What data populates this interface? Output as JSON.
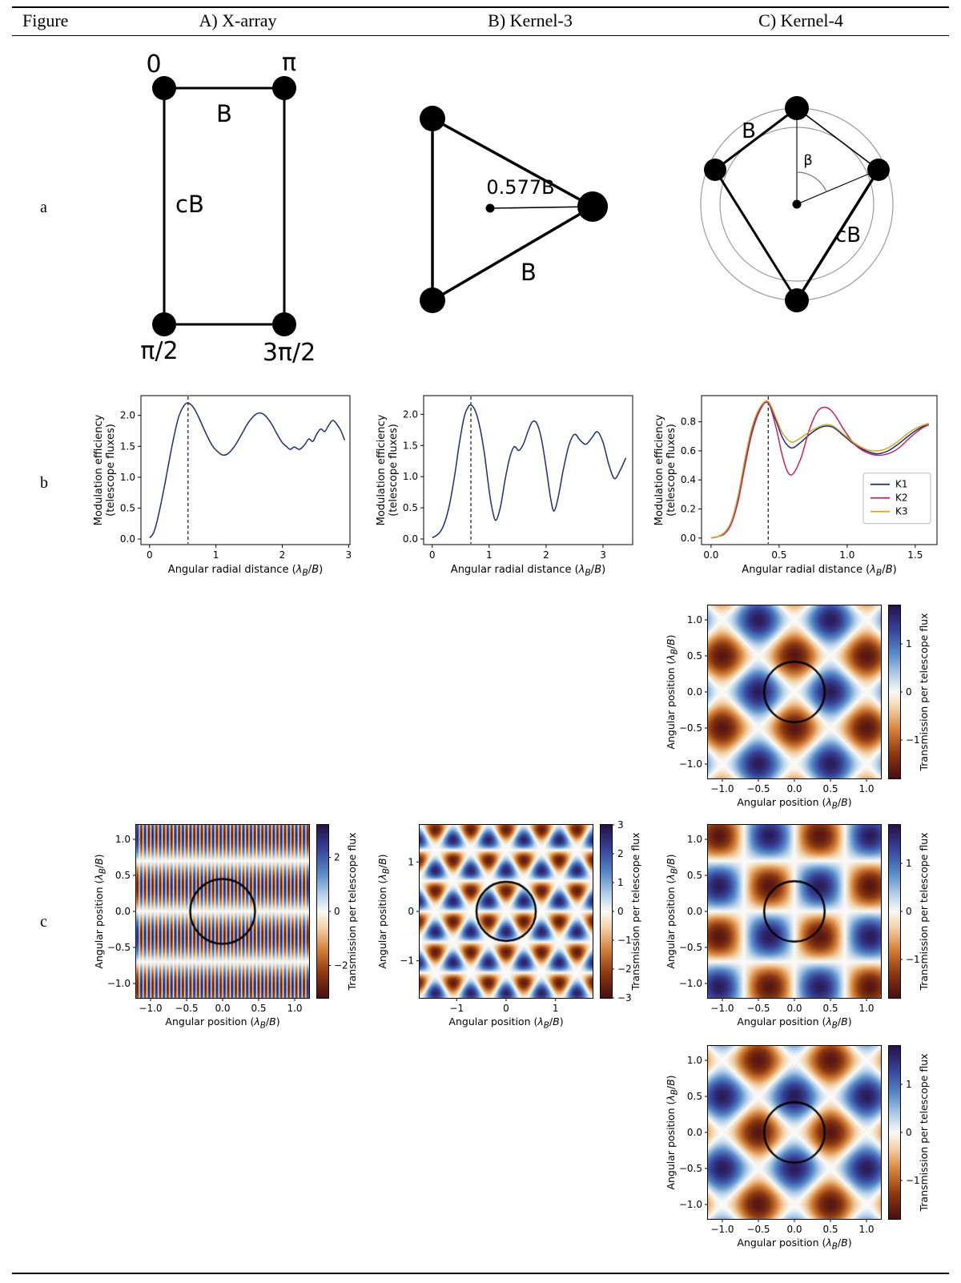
{
  "header": {
    "figure": "Figure",
    "col_a": "A) X-array",
    "col_b": "B) Kernel-3",
    "col_c": "C) Kernel-4"
  },
  "rows": {
    "a": "a",
    "b": "b",
    "c": "c"
  },
  "diagrams": {
    "xarray": {
      "phase_tl": "0",
      "phase_tr": "π",
      "phase_bl": "π/2",
      "phase_br": "3π/2",
      "baseline_top": "B",
      "baseline_left": "cB"
    },
    "kernel3": {
      "radius_label": "0.577B",
      "baseline": "B"
    },
    "kernel4": {
      "baseline_b": "B",
      "baseline_cb": "cB",
      "angle": "β"
    }
  },
  "labels": {
    "angpos_parts": [
      {
        "t": "Angular position (",
        "s": ""
      },
      {
        "t": "λ",
        "s": "i"
      },
      {
        "t": "B",
        "s": "sub"
      },
      {
        "t": "/",
        "s": ""
      },
      {
        "t": "B",
        "s": "i"
      },
      {
        "t": ")",
        "s": ""
      }
    ],
    "angrad_parts": [
      {
        "t": "Angular radial distance (",
        "s": ""
      },
      {
        "t": "λ",
        "s": "i"
      },
      {
        "t": "B",
        "s": "sub"
      },
      {
        "t": "/",
        "s": ""
      },
      {
        "t": "B",
        "s": "i"
      },
      {
        "t": ")",
        "s": ""
      }
    ],
    "modeff_lines": [
      "Modulation efficiency",
      "(telescope fluxes)"
    ],
    "cbar_label": "Transmission per telescope flux"
  },
  "chart_data": {
    "line_plots": [
      {
        "kind": "line",
        "title": "Modulation efficiency, X-array",
        "xlim": [
          -0.13,
          3.02
        ],
        "ylim": [
          -0.09,
          2.32
        ],
        "xticks": [
          {
            "v": 0,
            "l": "0"
          },
          {
            "v": 1,
            "l": "1"
          },
          {
            "v": 2,
            "l": "2"
          },
          {
            "v": 3,
            "l": "3"
          }
        ],
        "yticks": [
          {
            "v": 0,
            "l": "0.0"
          },
          {
            "v": 0.5,
            "l": "0.5"
          },
          {
            "v": 1,
            "l": "1.0"
          },
          {
            "v": 1.5,
            "l": "1.5"
          },
          {
            "v": 2,
            "l": "2.0"
          }
        ],
        "vline": 0.58,
        "xlabel": "angrad_parts",
        "ylabel_lines_key": "modeff_lines",
        "series": [
          {
            "name": "X-array",
            "color": "#1c2f6b",
            "x": [
              0,
              0.06,
              0.12,
              0.2,
              0.28,
              0.36,
              0.44,
              0.52,
              0.58,
              0.66,
              0.74,
              0.84,
              0.94,
              1.02,
              1.1,
              1.18,
              1.28,
              1.38,
              1.48,
              1.58,
              1.66,
              1.74,
              1.84,
              1.92,
              2.0,
              2.06,
              2.12,
              2.18,
              2.26,
              2.34,
              2.4,
              2.46,
              2.52,
              2.58,
              2.64,
              2.7,
              2.76,
              2.82,
              2.88,
              2.94
            ],
            "y": [
              0.02,
              0.1,
              0.32,
              0.72,
              1.18,
              1.62,
              1.98,
              2.16,
              2.2,
              2.13,
              1.97,
              1.73,
              1.52,
              1.42,
              1.36,
              1.38,
              1.5,
              1.68,
              1.87,
              2.0,
              2.04,
              2.0,
              1.86,
              1.7,
              1.56,
              1.5,
              1.45,
              1.49,
              1.45,
              1.53,
              1.62,
              1.58,
              1.7,
              1.78,
              1.74,
              1.84,
              1.92,
              1.86,
              1.76,
              1.6
            ]
          }
        ],
        "legend": false
      },
      {
        "kind": "line",
        "title": "Modulation efficiency, Kernel-3",
        "xlim": [
          -0.15,
          3.52
        ],
        "ylim": [
          -0.09,
          2.3
        ],
        "xticks": [
          {
            "v": 0,
            "l": "0"
          },
          {
            "v": 1,
            "l": "1"
          },
          {
            "v": 2,
            "l": "2"
          },
          {
            "v": 3,
            "l": "3"
          }
        ],
        "yticks": [
          {
            "v": 0,
            "l": "0.0"
          },
          {
            "v": 0.5,
            "l": "0.5"
          },
          {
            "v": 1,
            "l": "1.0"
          },
          {
            "v": 1.5,
            "l": "1.5"
          },
          {
            "v": 2,
            "l": "2.0"
          }
        ],
        "vline": 0.68,
        "xlabel": "angrad_parts",
        "ylabel_lines_key": "modeff_lines",
        "series": [
          {
            "name": "Kernel-3",
            "color": "#1c2f6b",
            "x": [
              0,
              0.08,
              0.16,
              0.24,
              0.32,
              0.4,
              0.48,
              0.56,
              0.62,
              0.68,
              0.76,
              0.84,
              0.92,
              1.0,
              1.06,
              1.12,
              1.2,
              1.28,
              1.36,
              1.44,
              1.52,
              1.6,
              1.68,
              1.76,
              1.84,
              1.92,
              2.0,
              2.08,
              2.14,
              2.22,
              2.3,
              2.4,
              2.5,
              2.6,
              2.7,
              2.8,
              2.9,
              3.0,
              3.1,
              3.2,
              3.3,
              3.4
            ],
            "y": [
              0.02,
              0.06,
              0.14,
              0.32,
              0.62,
              1.05,
              1.55,
              1.95,
              2.1,
              2.15,
              2.05,
              1.78,
              1.35,
              0.78,
              0.45,
              0.3,
              0.52,
              0.95,
              1.3,
              1.48,
              1.42,
              1.52,
              1.72,
              1.88,
              1.85,
              1.6,
              1.15,
              0.65,
              0.45,
              0.7,
              1.1,
              1.5,
              1.68,
              1.58,
              1.52,
              1.62,
              1.72,
              1.55,
              1.2,
              0.97,
              1.1,
              1.3
            ]
          }
        ],
        "legend": false
      },
      {
        "kind": "line",
        "title": "Modulation efficiency, Kernel-4",
        "xlim": [
          -0.07,
          1.66
        ],
        "ylim": [
          -0.045,
          0.98
        ],
        "xticks": [
          {
            "v": 0,
            "l": "0.0"
          },
          {
            "v": 0.5,
            "l": "0.5"
          },
          {
            "v": 1,
            "l": "1.0"
          },
          {
            "v": 1.5,
            "l": "1.5"
          }
        ],
        "yticks": [
          {
            "v": 0,
            "l": "0.0"
          },
          {
            "v": 0.2,
            "l": "0.2"
          },
          {
            "v": 0.4,
            "l": "0.4"
          },
          {
            "v": 0.6,
            "l": "0.6"
          },
          {
            "v": 0.8,
            "l": "0.8"
          }
        ],
        "vline": 0.42,
        "xlabel": "angrad_parts",
        "ylabel_lines_key": "modeff_lines",
        "series": [
          {
            "name": "K1",
            "color": "#1c2f6b",
            "x": [
              0,
              0.05,
              0.1,
              0.15,
              0.2,
              0.25,
              0.3,
              0.36,
              0.42,
              0.48,
              0.52,
              0.56,
              0.6,
              0.66,
              0.72,
              0.78,
              0.84,
              0.9,
              0.98,
              1.06,
              1.14,
              1.22,
              1.3,
              1.38,
              1.46,
              1.54,
              1.6
            ],
            "y": [
              0,
              0.01,
              0.04,
              0.11,
              0.28,
              0.53,
              0.74,
              0.89,
              0.93,
              0.8,
              0.7,
              0.64,
              0.62,
              0.66,
              0.71,
              0.75,
              0.77,
              0.76,
              0.7,
              0.64,
              0.6,
              0.58,
              0.6,
              0.65,
              0.71,
              0.76,
              0.78
            ]
          },
          {
            "name": "K2",
            "color": "#bb2664",
            "x": [
              0,
              0.05,
              0.1,
              0.15,
              0.2,
              0.25,
              0.3,
              0.36,
              0.42,
              0.48,
              0.52,
              0.56,
              0.6,
              0.66,
              0.72,
              0.78,
              0.84,
              0.9,
              0.98,
              1.06,
              1.14,
              1.22,
              1.3,
              1.38,
              1.46,
              1.54,
              1.6
            ],
            "y": [
              0,
              0.01,
              0.03,
              0.1,
              0.26,
              0.5,
              0.72,
              0.88,
              0.93,
              0.75,
              0.58,
              0.46,
              0.44,
              0.55,
              0.74,
              0.87,
              0.9,
              0.86,
              0.74,
              0.64,
              0.59,
              0.57,
              0.58,
              0.62,
              0.69,
              0.75,
              0.78
            ]
          },
          {
            "name": "K3",
            "color": "#d2a62c",
            "x": [
              0,
              0.05,
              0.1,
              0.15,
              0.2,
              0.25,
              0.3,
              0.36,
              0.42,
              0.48,
              0.52,
              0.56,
              0.6,
              0.66,
              0.72,
              0.78,
              0.84,
              0.9,
              0.98,
              1.06,
              1.14,
              1.22,
              1.3,
              1.38,
              1.46,
              1.54,
              1.6
            ],
            "y": [
              0,
              0.01,
              0.04,
              0.12,
              0.3,
              0.55,
              0.76,
              0.9,
              0.94,
              0.82,
              0.73,
              0.68,
              0.66,
              0.69,
              0.73,
              0.76,
              0.78,
              0.77,
              0.71,
              0.65,
              0.61,
              0.6,
              0.62,
              0.67,
              0.73,
              0.77,
              0.79
            ]
          }
        ],
        "legend": true
      }
    ],
    "heatmaps": [
      {
        "kind": "heat",
        "title": "X-array transmission map",
        "xlim": [
          -1.2,
          1.2
        ],
        "ylim": [
          -1.2,
          1.2
        ],
        "xticks": [
          {
            "v": -1,
            "l": "−1.0"
          },
          {
            "v": -0.5,
            "l": "−0.5"
          },
          {
            "v": 0,
            "l": "0.0"
          },
          {
            "v": 0.5,
            "l": "0.5"
          },
          {
            "v": 1,
            "l": "1.0"
          }
        ],
        "yticks": [
          {
            "v": -1,
            "l": "−1.0"
          },
          {
            "v": -0.5,
            "l": "−0.5"
          },
          {
            "v": 0,
            "l": "0.0"
          },
          {
            "v": 0.5,
            "l": "0.5"
          },
          {
            "v": 1,
            "l": "1.0"
          }
        ],
        "pattern": {
          "type": "stripes",
          "px": 0.105,
          "py": 1.4,
          "amp": 3
        },
        "vmax": 3.2,
        "circle_r": 0.45,
        "cbar_ticks": [
          {
            "v": 2,
            "l": "2"
          },
          {
            "v": 0,
            "l": "0"
          },
          {
            "v": -2,
            "l": "−2"
          }
        ],
        "xlabel": "angpos_parts",
        "ylabel": "angpos_parts"
      },
      {
        "kind": "heat",
        "title": "Kernel-3 transmission map",
        "xlim": [
          -1.75,
          1.75
        ],
        "ylim": [
          -1.75,
          1.75
        ],
        "xticks": [
          {
            "v": -1,
            "l": "−1"
          },
          {
            "v": 0,
            "l": "0"
          },
          {
            "v": 1,
            "l": "1"
          }
        ],
        "yticks": [
          {
            "v": -1,
            "l": "−1"
          },
          {
            "v": 0,
            "l": "0"
          },
          {
            "v": 1,
            "l": "1"
          }
        ],
        "pattern": {
          "type": "tri",
          "p": 0.62,
          "amp": 1.05
        },
        "vmax": 3,
        "circle_r": 0.6,
        "cbar_ticks": [
          {
            "v": 3,
            "l": "3"
          },
          {
            "v": 2,
            "l": "2"
          },
          {
            "v": 1,
            "l": "1"
          },
          {
            "v": 0,
            "l": "0"
          },
          {
            "v": -1,
            "l": "−1"
          },
          {
            "v": -2,
            "l": "−2"
          },
          {
            "v": -3,
            "l": "−3"
          }
        ],
        "xlabel": "angpos_parts",
        "ylabel": "angpos_parts"
      },
      {
        "kind": "heat",
        "title": "Kernel-4 K1 transmission map",
        "xlim": [
          -1.2,
          1.2
        ],
        "ylim": [
          -1.2,
          1.2
        ],
        "xticks": [
          {
            "v": -1,
            "l": "−1.0"
          },
          {
            "v": -0.5,
            "l": "−0.5"
          },
          {
            "v": 0,
            "l": "0.0"
          },
          {
            "v": 0.5,
            "l": "0.5"
          },
          {
            "v": 1,
            "l": "1.0"
          }
        ],
        "yticks": [
          {
            "v": -1,
            "l": "−1.0"
          },
          {
            "v": -0.5,
            "l": "−0.5"
          },
          {
            "v": 0,
            "l": "0.0"
          },
          {
            "v": 0.5,
            "l": "0.5"
          },
          {
            "v": 1,
            "l": "1.0"
          }
        ],
        "pattern": {
          "type": "diag",
          "p": 1.0,
          "amp": 1.7,
          "sign": 1
        },
        "vmax": 1.8,
        "circle_r": 0.42,
        "cbar_ticks": [
          {
            "v": 1,
            "l": "1"
          },
          {
            "v": 0,
            "l": "0"
          },
          {
            "v": -1,
            "l": "−1"
          }
        ],
        "xlabel": "angpos_parts",
        "ylabel": "angpos_parts"
      },
      {
        "kind": "heat",
        "title": "Kernel-4 K2 transmission map",
        "xlim": [
          -1.2,
          1.2
        ],
        "ylim": [
          -1.2,
          1.2
        ],
        "xticks": [
          {
            "v": -1,
            "l": "−1.0"
          },
          {
            "v": -0.5,
            "l": "−0.5"
          },
          {
            "v": 0,
            "l": "0.0"
          },
          {
            "v": 0.5,
            "l": "0.5"
          },
          {
            "v": 1,
            "l": "1.0"
          }
        ],
        "yticks": [
          {
            "v": -1,
            "l": "−1.0"
          },
          {
            "v": -0.5,
            "l": "−0.5"
          },
          {
            "v": 0,
            "l": "0.0"
          },
          {
            "v": 0.5,
            "l": "0.5"
          },
          {
            "v": 1,
            "l": "1.0"
          }
        ],
        "pattern": {
          "type": "checker",
          "p": 1.4,
          "amp": 1.7
        },
        "vmax": 1.8,
        "circle_r": 0.42,
        "cbar_ticks": [
          {
            "v": 1,
            "l": "1"
          },
          {
            "v": 0,
            "l": "0"
          },
          {
            "v": -1,
            "l": "−1"
          }
        ],
        "xlabel": "angpos_parts",
        "ylabel": "angpos_parts"
      },
      {
        "kind": "heat",
        "title": "Kernel-4 K3 transmission map",
        "xlim": [
          -1.2,
          1.2
        ],
        "ylim": [
          -1.2,
          1.2
        ],
        "xticks": [
          {
            "v": -1,
            "l": "−1.0"
          },
          {
            "v": -0.5,
            "l": "−0.5"
          },
          {
            "v": 0,
            "l": "0.0"
          },
          {
            "v": 0.5,
            "l": "0.5"
          },
          {
            "v": 1,
            "l": "1.0"
          }
        ],
        "yticks": [
          {
            "v": -1,
            "l": "−1.0"
          },
          {
            "v": -0.5,
            "l": "−0.5"
          },
          {
            "v": 0,
            "l": "0.0"
          },
          {
            "v": 0.5,
            "l": "0.5"
          },
          {
            "v": 1,
            "l": "1.0"
          }
        ],
        "pattern": {
          "type": "diag",
          "p": 1.0,
          "amp": 1.7,
          "sign": -1
        },
        "vmax": 1.8,
        "circle_r": 0.42,
        "cbar_ticks": [
          {
            "v": 1,
            "l": "1"
          },
          {
            "v": 0,
            "l": "0"
          },
          {
            "v": -1,
            "l": "−1"
          }
        ],
        "xlabel": "angpos_parts",
        "ylabel": "angpos_parts"
      }
    ]
  }
}
